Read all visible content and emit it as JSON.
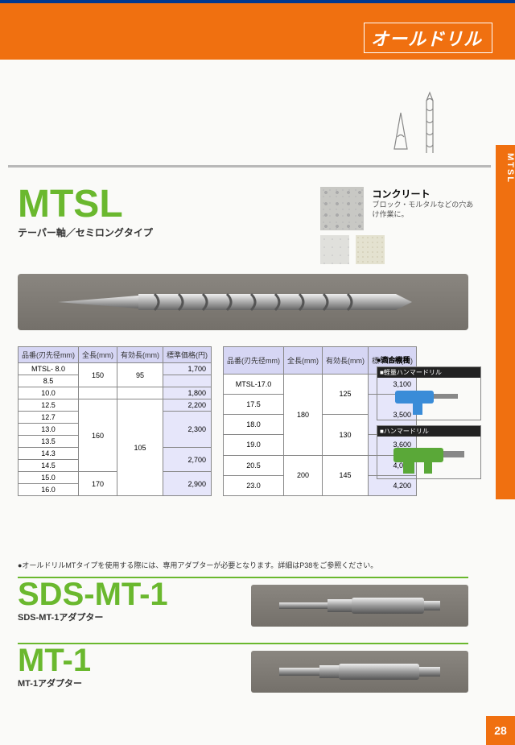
{
  "brand": "オールドリル",
  "side_tab": "MTSL",
  "page_number": "28",
  "mtsl": {
    "title": "MTSL",
    "subtitle": "テーパー軸／セミロングタイプ"
  },
  "concrete": {
    "heading": "コンクリート",
    "sub": "ブロック・モルタルなどの穴あけ作業に。"
  },
  "table_headers": {
    "code": "品番(刃先径mm)",
    "length": "全長(mm)",
    "eff": "有効長(mm)",
    "price": "標準価格(円)"
  },
  "table1": {
    "rows": [
      {
        "code": "MTSL- 8.0",
        "len": "150",
        "eff": "95",
        "price": "1,700",
        "len_span": 2,
        "eff_span": 2,
        "price_span": 1
      },
      {
        "code": "8.5",
        "price": ""
      },
      {
        "code": "10.0",
        "len": "",
        "eff": "",
        "price": "1,800",
        "len_span": 0,
        "eff_span": 0
      },
      {
        "code": "12.5",
        "len": "160",
        "eff": "105",
        "price": "2,200",
        "len_span": 6,
        "eff_span": 8
      },
      {
        "code": "12.7",
        "price": "2,300",
        "price_span": 3
      },
      {
        "code": "13.0"
      },
      {
        "code": "13.5"
      },
      {
        "code": "14.3",
        "price": "2,700",
        "price_span": 2
      },
      {
        "code": "14.5"
      },
      {
        "code": "15.0",
        "len": "170",
        "len_span": 2,
        "price": "2,900",
        "price_span": 2
      },
      {
        "code": "16.0"
      }
    ]
  },
  "table2": {
    "rows": [
      {
        "code": "MTSL-17.0",
        "len": "180",
        "eff": "125",
        "price": "3,100",
        "len_span": 4,
        "eff_span": 2
      },
      {
        "code": "17.5",
        "price": "3,500",
        "price_span": 2
      },
      {
        "code": "18.0",
        "eff": "130",
        "eff_span": 2
      },
      {
        "code": "19.0",
        "price": "3,600"
      },
      {
        "code": "20.5",
        "len": "200",
        "eff": "145",
        "price": "4,000",
        "len_span": 2,
        "eff_span": 2
      },
      {
        "code": "23.0",
        "price": "4,200"
      }
    ]
  },
  "compat": {
    "heading": "●適合機種",
    "label1": "■軽量ハンマードリル",
    "label2": "■ハンマードリル",
    "color1": "#3a8cd8",
    "color2": "#5aa838"
  },
  "note": "●オールドリルMTタイプを使用する際には、専用アダプターが必要となります。詳細はP38をご参照ください。",
  "adapters": [
    {
      "title": "SDS-MT-1",
      "sub": "SDS-MT-1アダプター"
    },
    {
      "title": "MT-1",
      "sub": "MT-1アダプター"
    }
  ]
}
